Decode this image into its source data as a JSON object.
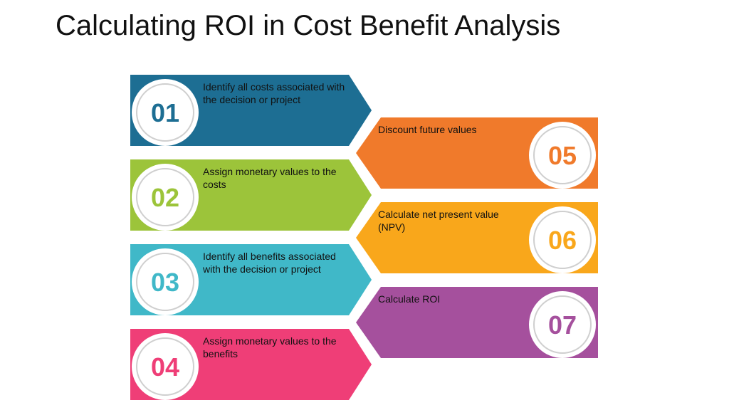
{
  "title": "Calculating ROI in Cost Benefit Analysis",
  "steps": [
    {
      "number": "01",
      "text": "Identify all costs associated with the decision or project",
      "color": "#1d6e93",
      "side": "left"
    },
    {
      "number": "02",
      "text": "Assign monetary values to the costs",
      "color": "#9cc43a",
      "side": "left"
    },
    {
      "number": "03",
      "text": "Identify all benefits associated with the decision or project",
      "color": "#40b8c8",
      "side": "left"
    },
    {
      "number": "04",
      "text": "Assign monetary values to the benefits",
      "color": "#ef3e77",
      "side": "left"
    },
    {
      "number": "05",
      "text": "Discount future values",
      "color": "#f07a2b",
      "side": "right"
    },
    {
      "number": "06",
      "text": "Calculate net present value (NPV)",
      "color": "#f9a71b",
      "side": "right"
    },
    {
      "number": "07",
      "text": "Calculate ROI",
      "color": "#a5509d",
      "side": "right"
    }
  ]
}
